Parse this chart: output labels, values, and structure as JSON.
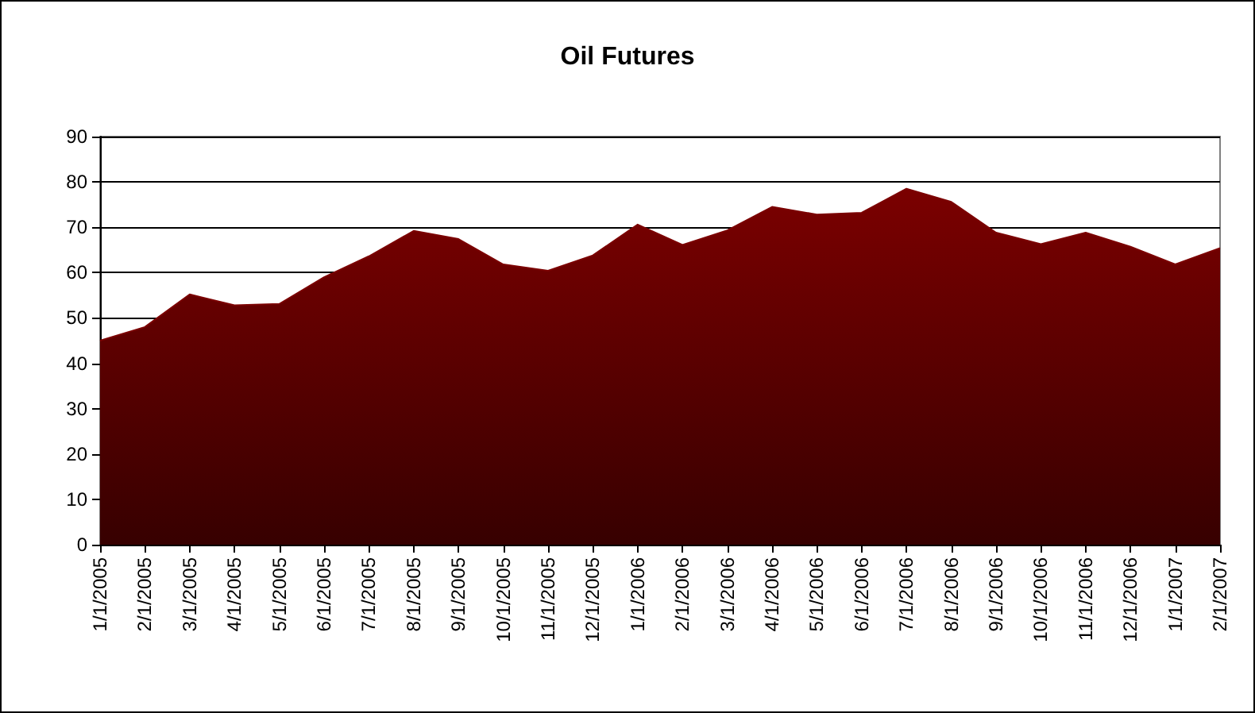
{
  "chart_data": {
    "type": "area",
    "title": "Oil Futures",
    "categories": [
      "1/1/2005",
      "2/1/2005",
      "3/1/2005",
      "4/1/2005",
      "5/1/2005",
      "6/1/2005",
      "7/1/2005",
      "8/1/2005",
      "9/1/2005",
      "10/1/2005",
      "11/1/2005",
      "12/1/2005",
      "1/1/2006",
      "2/1/2006",
      "3/1/2006",
      "4/1/2006",
      "5/1/2006",
      "6/1/2006",
      "7/1/2006",
      "8/1/2006",
      "9/1/2006",
      "10/1/2006",
      "11/1/2006",
      "12/1/2006",
      "1/1/2007",
      "2/1/2007"
    ],
    "values": [
      45,
      48,
      55.2,
      52.8,
      53.1,
      59,
      63.6,
      69.2,
      67.4,
      61.8,
      60.4,
      63.8,
      70.6,
      66.1,
      69.3,
      74.5,
      72.8,
      73.2,
      78.5,
      75.6,
      68.8,
      66.3,
      68.8,
      65.7,
      61.8,
      65.4
    ],
    "color": "#7b0000",
    "ylim": [
      0,
      90
    ],
    "yticks": [
      0,
      10,
      20,
      30,
      40,
      50,
      60,
      70,
      80,
      90
    ],
    "grid": "y"
  }
}
